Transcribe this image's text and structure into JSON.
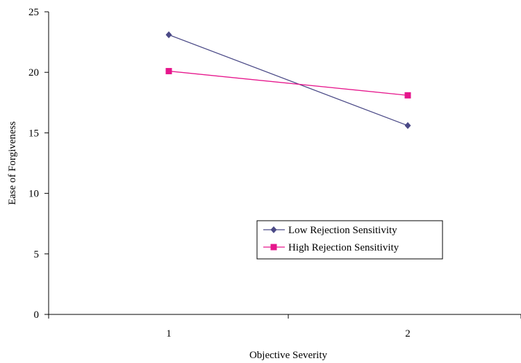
{
  "chart_data": {
    "type": "line",
    "xlabel": "Objective Severity",
    "ylabel": "Ease of Forgiveness",
    "categories": [
      "1",
      "2"
    ],
    "ylim": [
      0,
      25
    ],
    "yticks": [
      "0",
      "5",
      "10",
      "15",
      "20",
      "25"
    ],
    "grid": false,
    "legend_position": "center-right",
    "series": [
      {
        "name": "Low Rejection Sensitivity",
        "values": [
          23.1,
          15.6
        ],
        "color": "#4b4a87",
        "marker": "diamond"
      },
      {
        "name": "High Rejection Sensitivity",
        "values": [
          20.1,
          18.1
        ],
        "color": "#e6168c",
        "marker": "square"
      }
    ]
  }
}
